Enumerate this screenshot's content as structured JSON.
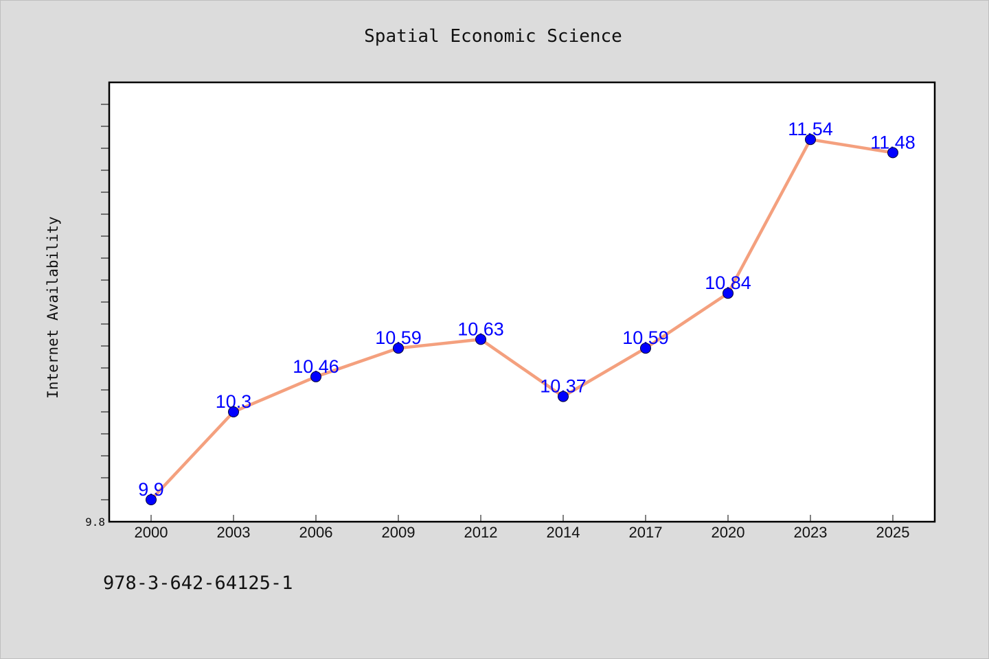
{
  "chart_data": {
    "type": "line",
    "title": "Spatial Economic Science",
    "xlabel": "",
    "ylabel": "Internet Availability",
    "categories": [
      "2000",
      "2003",
      "2006",
      "2009",
      "2012",
      "2014",
      "2017",
      "2020",
      "2023",
      "2025"
    ],
    "series": [
      {
        "values": [
          9.9,
          10.3,
          10.46,
          10.59,
          10.63,
          10.37,
          10.59,
          10.84,
          11.54,
          11.48
        ],
        "labels": [
          "9.9",
          "10.3",
          "10.46",
          "10.59",
          "10.63",
          "10.37",
          "10.59",
          "10.84",
          "11.54",
          "11.48"
        ]
      }
    ],
    "ylim": [
      9.8,
      11.8
    ],
    "yticks_labeled": [
      "9.8"
    ],
    "y_minor_tick_step": 0.1,
    "grid": false,
    "data_labels": true,
    "colors": {
      "line": "#f4a07e",
      "marker": "#0000ff",
      "data_label": "#0000ff",
      "plot_background": "#ffffff",
      "page_background": "#dcdcdc"
    }
  },
  "footer": {
    "text": "978-3-642-64125-1"
  }
}
